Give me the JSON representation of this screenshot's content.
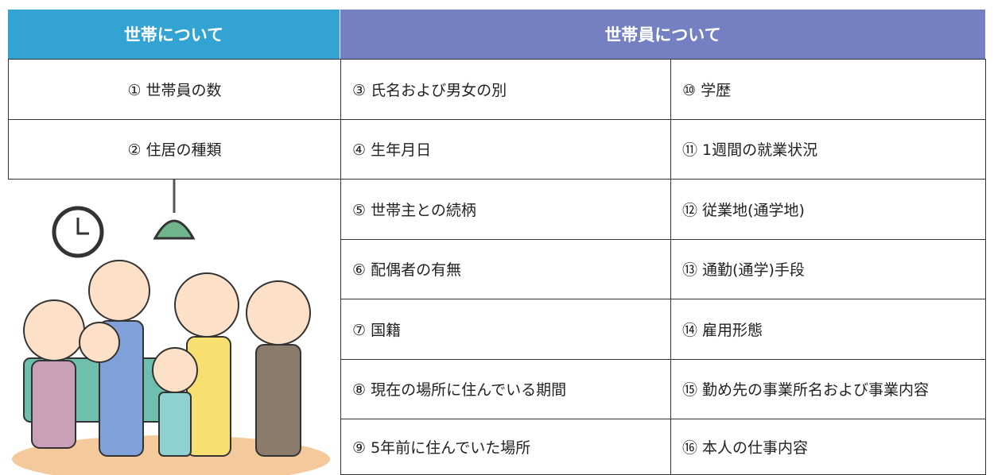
{
  "header": {
    "household": "世帯について",
    "members": "世帯員について"
  },
  "household_items": [
    "① 世帯員の数",
    "② 住居の種類"
  ],
  "member_items": {
    "left": [
      "③ 氏名および男女の別",
      "④ 生年月日",
      "⑤ 世帯主との続柄",
      "⑥ 配偶者の有無",
      "⑦ 国籍",
      "⑧ 現在の場所に住んでいる期間",
      "⑨ 5年前に住んでいた場所"
    ],
    "right": [
      "⑩ 学歴",
      "⑪ 1週間の就業状況",
      "⑫ 従業地(通学地)",
      "⑬ 通勤(通学)手段",
      "⑭ 雇用形態",
      "⑮ 勤め先の事業所名および事業内容",
      "⑯ 本人の仕事内容"
    ]
  }
}
